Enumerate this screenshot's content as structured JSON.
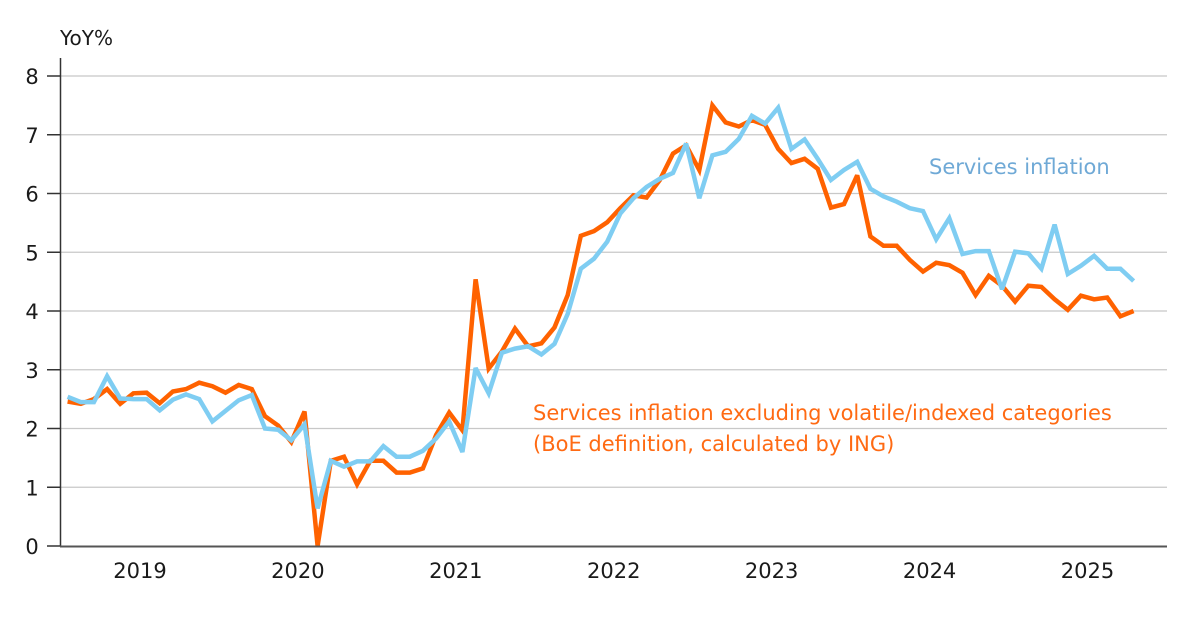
{
  "chart_data": {
    "type": "line",
    "title": "",
    "ylabel": "YoY%",
    "xlabel": "",
    "ylim": [
      0,
      8
    ],
    "yticks": [
      0,
      1,
      2,
      3,
      4,
      5,
      6,
      7,
      8
    ],
    "grid": "horizontal",
    "x_start": "2019-01",
    "x_frequency": "monthly",
    "xtick_labels": [
      "2019",
      "2020",
      "2021",
      "2022",
      "2023",
      "2024",
      "2025"
    ],
    "series": [
      {
        "name": "Services inflation",
        "label": "Services inflation",
        "color": "#7fcdf2",
        "label_color": "#6fa9d6",
        "values": [
          2.54,
          2.45,
          2.45,
          2.89,
          2.51,
          2.5,
          2.5,
          2.31,
          2.49,
          2.58,
          2.5,
          2.12,
          2.3,
          2.48,
          2.57,
          2.0,
          1.98,
          1.8,
          2.07,
          0.64,
          1.45,
          1.35,
          1.44,
          1.44,
          1.7,
          1.52,
          1.52,
          1.62,
          1.83,
          2.12,
          1.6,
          3.03,
          2.6,
          3.29,
          3.36,
          3.4,
          3.26,
          3.44,
          3.95,
          4.72,
          4.89,
          5.18,
          5.66,
          5.92,
          6.11,
          6.25,
          6.35,
          6.85,
          5.92,
          6.65,
          6.71,
          6.93,
          7.32,
          7.19,
          7.46,
          6.76,
          6.92,
          6.59,
          6.23,
          6.4,
          6.54,
          6.08,
          5.95,
          5.86,
          5.75,
          5.7,
          5.22,
          5.58,
          4.97,
          5.02,
          5.02,
          4.37,
          5.01,
          4.98,
          4.72,
          5.47,
          4.63,
          4.77,
          4.94,
          4.72,
          4.72,
          4.51
        ]
      },
      {
        "name": "Services inflation excluding volatile/indexed categories (BoE definition, calculated by ING)",
        "label_lines": [
          "Services inflation excluding volatile/indexed categories",
          "(BoE definition, calculated by ING)"
        ],
        "color": "#ff6200",
        "label_color": "#ff6a13",
        "values": [
          2.46,
          2.42,
          2.5,
          2.67,
          2.42,
          2.6,
          2.61,
          2.43,
          2.63,
          2.67,
          2.78,
          2.72,
          2.61,
          2.74,
          2.67,
          2.21,
          2.05,
          1.77,
          2.29,
          0.0,
          1.45,
          1.52,
          1.05,
          1.45,
          1.45,
          1.25,
          1.25,
          1.32,
          1.89,
          2.27,
          1.97,
          4.54,
          3.02,
          3.31,
          3.7,
          3.4,
          3.45,
          3.72,
          4.27,
          5.28,
          5.36,
          5.51,
          5.75,
          5.97,
          5.93,
          6.23,
          6.68,
          6.82,
          6.4,
          7.5,
          7.21,
          7.14,
          7.25,
          7.17,
          6.76,
          6.52,
          6.59,
          6.42,
          5.76,
          5.82,
          6.31,
          5.27,
          5.11,
          5.11,
          4.87,
          4.67,
          4.82,
          4.78,
          4.65,
          4.27,
          4.6,
          4.43,
          4.16,
          4.43,
          4.41,
          4.2,
          4.02,
          4.26,
          4.2,
          4.23,
          3.91,
          4.0
        ]
      }
    ]
  }
}
